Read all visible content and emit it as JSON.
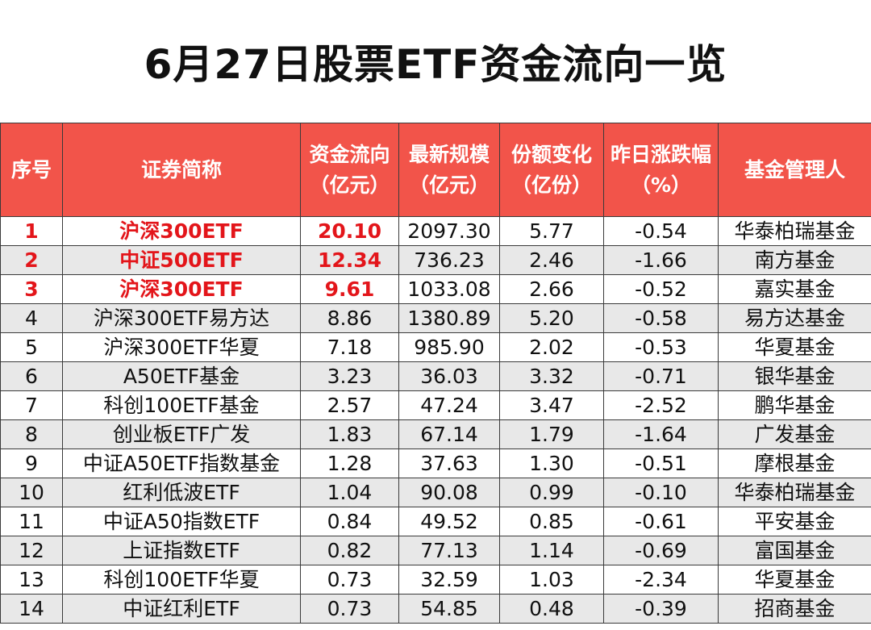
{
  "title": "6月27日股票ETF资金流向一览",
  "headers": [
    {
      "line1": "序号",
      "line2": ""
    },
    {
      "line1": "证券简称",
      "line2": ""
    },
    {
      "line1": "资金流向",
      "line2": "（亿元）"
    },
    {
      "line1": "最新规模",
      "line2": "（亿元）"
    },
    {
      "line1": "份额变化",
      "line2": "（亿份）"
    },
    {
      "line1": "昨日涨跌幅",
      "line2": "（%）"
    },
    {
      "line1": "基金管理人",
      "line2": ""
    }
  ],
  "rows": [
    {
      "no": "1",
      "name": "沪深300ETF",
      "flow": "20.10",
      "scale": "2097.30",
      "share": "5.77",
      "chg": "-0.54",
      "mgr": "华泰柏瑞基金"
    },
    {
      "no": "2",
      "name": "中证500ETF",
      "flow": "12.34",
      "scale": "736.23",
      "share": "2.46",
      "chg": "-1.66",
      "mgr": "南方基金"
    },
    {
      "no": "3",
      "name": "沪深300ETF",
      "flow": "9.61",
      "scale": "1033.08",
      "share": "2.66",
      "chg": "-0.52",
      "mgr": "嘉实基金"
    },
    {
      "no": "4",
      "name": "沪深300ETF易方达",
      "flow": "8.86",
      "scale": "1380.89",
      "share": "5.20",
      "chg": "-0.58",
      "mgr": "易方达基金"
    },
    {
      "no": "5",
      "name": "沪深300ETF华夏",
      "flow": "7.18",
      "scale": "985.90",
      "share": "2.02",
      "chg": "-0.53",
      "mgr": "华夏基金"
    },
    {
      "no": "6",
      "name": "A50ETF基金",
      "flow": "3.23",
      "scale": "36.03",
      "share": "3.32",
      "chg": "-0.71",
      "mgr": "银华基金"
    },
    {
      "no": "7",
      "name": "科创100ETF基金",
      "flow": "2.57",
      "scale": "47.24",
      "share": "3.47",
      "chg": "-2.52",
      "mgr": "鹏华基金"
    },
    {
      "no": "8",
      "name": "创业板ETF广发",
      "flow": "1.83",
      "scale": "67.14",
      "share": "1.79",
      "chg": "-1.64",
      "mgr": "广发基金"
    },
    {
      "no": "9",
      "name": "中证A50ETF指数基金",
      "flow": "1.28",
      "scale": "37.63",
      "share": "1.30",
      "chg": "-0.51",
      "mgr": "摩根基金"
    },
    {
      "no": "10",
      "name": "红利低波ETF",
      "flow": "1.04",
      "scale": "90.08",
      "share": "0.99",
      "chg": "-0.10",
      "mgr": "华泰柏瑞基金"
    },
    {
      "no": "11",
      "name": "中证A50指数ETF",
      "flow": "0.84",
      "scale": "49.52",
      "share": "0.85",
      "chg": "-0.61",
      "mgr": "平安基金"
    },
    {
      "no": "12",
      "name": "上证指数ETF",
      "flow": "0.82",
      "scale": "77.13",
      "share": "1.14",
      "chg": "-0.69",
      "mgr": "富国基金"
    },
    {
      "no": "13",
      "name": "科创100ETF华夏",
      "flow": "0.73",
      "scale": "32.59",
      "share": "1.03",
      "chg": "-2.34",
      "mgr": "华夏基金"
    },
    {
      "no": "14",
      "name": "中证红利ETF",
      "flow": "0.73",
      "scale": "54.85",
      "share": "0.48",
      "chg": "-0.39",
      "mgr": "招商基金"
    }
  ],
  "highlight_color": "#e3151a",
  "header_bg": "#f2544a"
}
